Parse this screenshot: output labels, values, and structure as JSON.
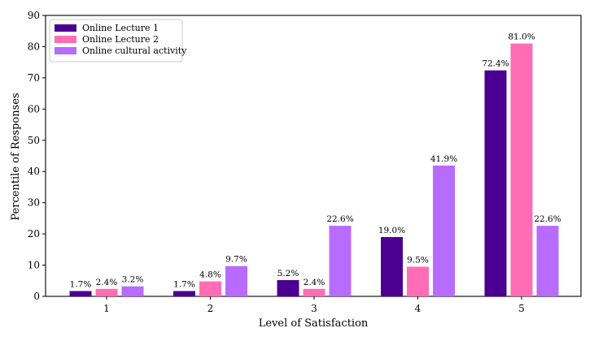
{
  "chart_data": {
    "type": "bar",
    "xlabel": "Level of Satisfaction",
    "ylabel": "Percentile of Responses",
    "ylim": [
      0,
      90
    ],
    "yticks": [
      0,
      10,
      20,
      30,
      40,
      50,
      60,
      70,
      80,
      90
    ],
    "categories": [
      "1",
      "2",
      "3",
      "4",
      "5"
    ],
    "series": [
      {
        "name": "Online Lecture 1",
        "color": "#4b0092",
        "values": [
          1.7,
          1.7,
          5.2,
          19.0,
          72.4
        ],
        "labels": [
          "1.7%",
          "1.7%",
          "5.2%",
          "19.0%",
          "72.4%"
        ]
      },
      {
        "name": "Online Lecture 2",
        "color": "#ff6eb4",
        "values": [
          2.4,
          4.8,
          2.4,
          9.5,
          81.0
        ],
        "labels": [
          "2.4%",
          "4.8%",
          "2.4%",
          "9.5%",
          "81.0%"
        ]
      },
      {
        "name": "Online cultural activity",
        "color": "#b86bff",
        "values": [
          3.2,
          9.7,
          22.6,
          41.9,
          22.6
        ],
        "labels": [
          "3.2%",
          "9.7%",
          "22.6%",
          "41.9%",
          "22.6%"
        ]
      }
    ],
    "legend_position": "top-left",
    "grid": false
  }
}
